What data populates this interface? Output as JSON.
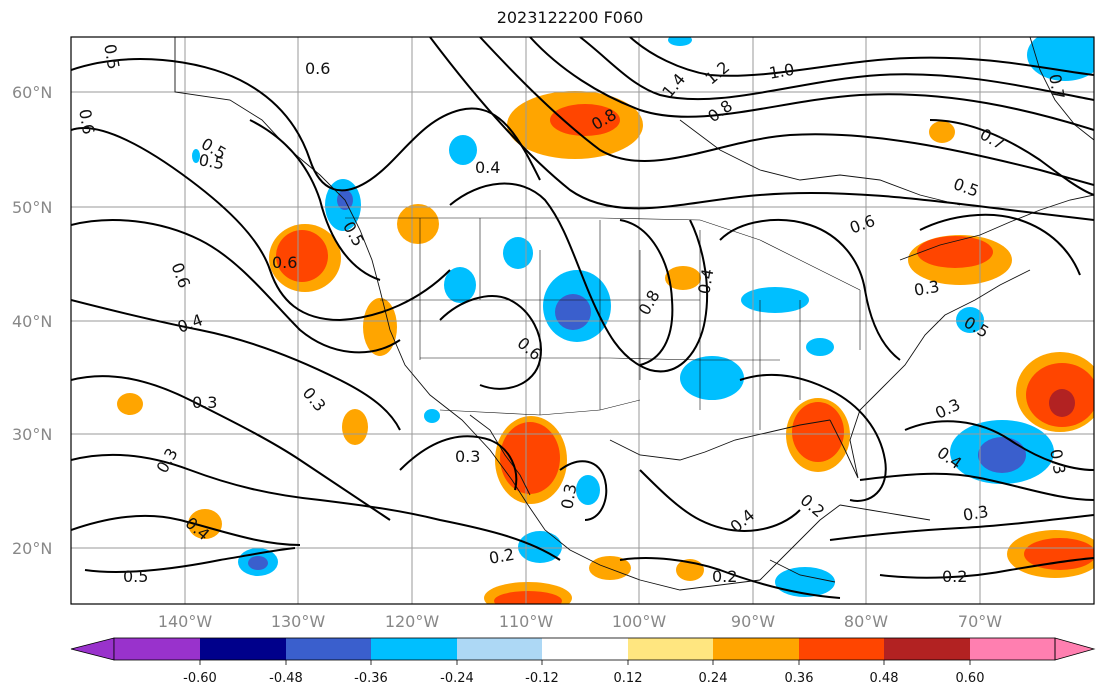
{
  "title": "2023122200 F060",
  "map": {
    "lat_labels": [
      "60°N",
      "50°N",
      "40°N",
      "30°N",
      "20°N"
    ],
    "lon_labels": [
      "140°W",
      "130°W",
      "120°W",
      "110°W",
      "100°W",
      "90°W",
      "80°W",
      "70°W"
    ],
    "contour_labels": [
      "0.5",
      "0.6",
      "0.6",
      "0.5",
      "0.5",
      "0.4",
      "0.3",
      "0.3",
      "0.5",
      "0.6",
      "0.4",
      "0.6",
      "0.7",
      "0.8",
      "1.0",
      "1.2",
      "1.4",
      "0.8",
      "0.7",
      "0.5",
      "0.6",
      "0.4",
      "0.8",
      "0.6",
      "0.3",
      "0.2",
      "0.3",
      "0.2",
      "0.4",
      "0.3",
      "0.3",
      "0.4",
      "0.3",
      "0.2",
      "0.2",
      "0.3",
      "0.4",
      "0.3",
      "0.5",
      "0.5"
    ]
  },
  "colorbar": {
    "ticks": [
      "-0.60",
      "-0.48",
      "-0.36",
      "-0.24",
      "-0.12",
      "0.12",
      "0.24",
      "0.36",
      "0.48",
      "0.60"
    ],
    "colors": [
      "#9932cc",
      "#00008b",
      "#3a5fcd",
      "#00bfff",
      "#add8f5",
      "#ffffff",
      "#ffe680",
      "#ffa500",
      "#ff4500",
      "#b22222",
      "#ff7fb0"
    ]
  }
}
